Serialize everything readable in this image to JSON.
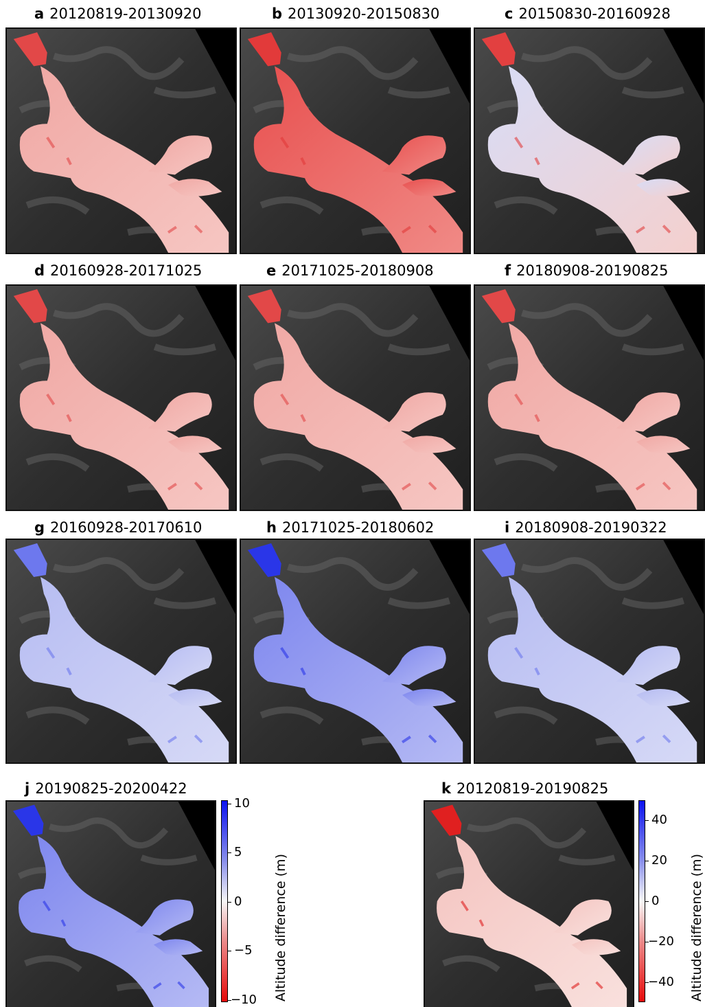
{
  "panels": [
    {
      "letter": "a",
      "dates": "20120819-20130920",
      "tint": "red-mild"
    },
    {
      "letter": "b",
      "dates": "20130920-20150830",
      "tint": "red"
    },
    {
      "letter": "c",
      "dates": "20150830-20160928",
      "tint": "mixed"
    },
    {
      "letter": "d",
      "dates": "20160928-20171025",
      "tint": "red-mild"
    },
    {
      "letter": "e",
      "dates": "20171025-20180908",
      "tint": "red-mild"
    },
    {
      "letter": "f",
      "dates": "20180908-20190825",
      "tint": "red-mild"
    },
    {
      "letter": "g",
      "dates": "20160928-20170610",
      "tint": "blue-mild"
    },
    {
      "letter": "h",
      "dates": "20171025-20180602",
      "tint": "blue"
    },
    {
      "letter": "i",
      "dates": "20180908-20190322",
      "tint": "blue-mild"
    },
    {
      "letter": "j",
      "dates": "20190825-20200422",
      "tint": "blue"
    },
    {
      "letter": "k",
      "dates": "20120819-20190825",
      "tint": "pale-red"
    }
  ],
  "colorbars": [
    {
      "id": "j",
      "label": "Altitude difference (m)",
      "ticks": [
        "10",
        "5",
        "0",
        "−5",
        "−10"
      ],
      "range": [
        -10,
        10
      ]
    },
    {
      "id": "k",
      "label": "Altitude difference (m)",
      "ticks": [
        "40",
        "20",
        "0",
        "−20",
        "−40"
      ],
      "range": [
        -50,
        50
      ]
    }
  ],
  "colors": {
    "negative": "#d7191c",
    "zero": "#f7f7f7",
    "positive": "#1f2fe6",
    "background": "#3a3a3a"
  }
}
